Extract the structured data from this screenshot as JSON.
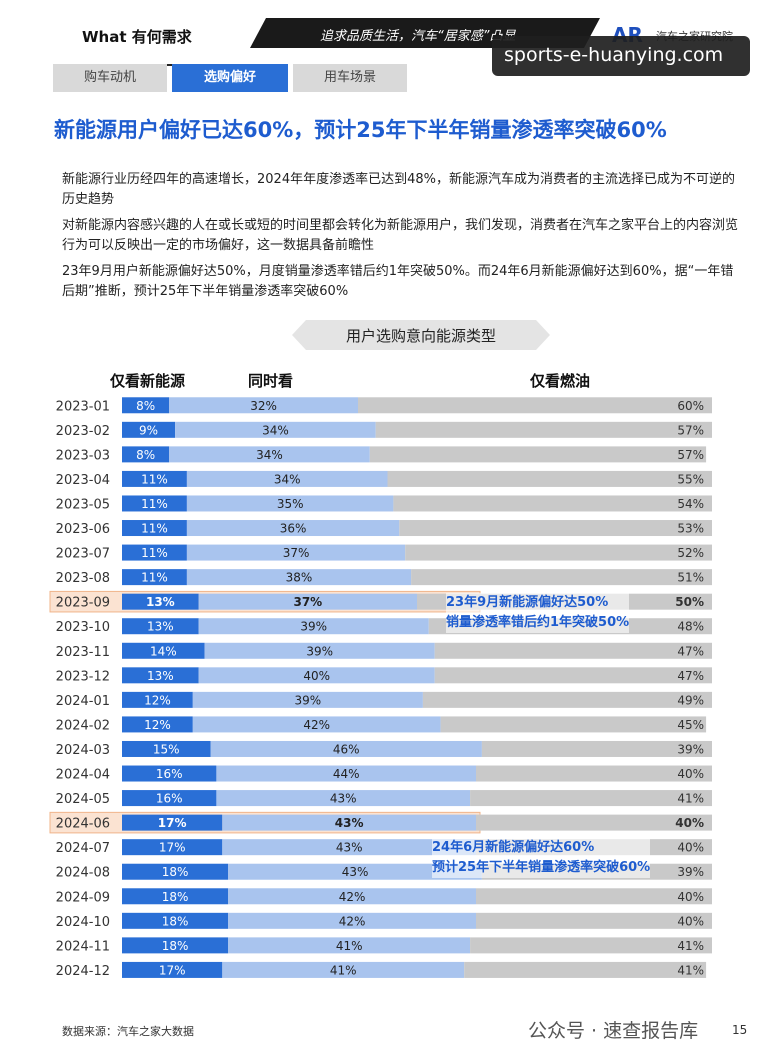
{
  "header": {
    "section": "What 有何需求",
    "banner": "追求品质生活，汽车“居家感”凸显",
    "logo_mark": "AR",
    "logo_text": "汽车之家研究院",
    "watermark": "sports-e-huanying.com"
  },
  "tabs": [
    {
      "label": "购车动机",
      "active": false
    },
    {
      "label": "选购偏好",
      "active": true
    },
    {
      "label": "用车场景",
      "active": false
    }
  ],
  "headline": "新能源用户偏好已达60%，预计25年下半年销量渗透率突破60%",
  "paragraphs": [
    "新能源行业历经四年的高速增长，2024年年度渗透率已达到48%，新能源汽车成为消费者的主流选择已成为不可逆的历史趋势",
    "对新能源内容感兴趣的人在或长或短的时间里都会转化为新能源用户，我们发现，消费者在汽车之家平台上的内容浏览行为可以反映出一定的市场偏好，这一数据具备前瞻性",
    "23年9月用户新能源偏好达50%，月度销量渗透率错后约1年突破50%。而24年6月新能源偏好达到60%，据“一年错后期”推断，预计25年下半年销量渗透率突破60%"
  ],
  "chart_data": {
    "type": "bar",
    "stacked": true,
    "orientation": "horizontal",
    "title": "用户选购意向能源类型",
    "categories": [
      "2023-01",
      "2023-02",
      "2023-03",
      "2023-04",
      "2023-05",
      "2023-06",
      "2023-07",
      "2023-08",
      "2023-09",
      "2023-10",
      "2023-11",
      "2023-12",
      "2024-01",
      "2024-02",
      "2024-03",
      "2024-04",
      "2024-05",
      "2024-06",
      "2024-07",
      "2024-08",
      "2024-09",
      "2024-10",
      "2024-11",
      "2024-12"
    ],
    "series": [
      {
        "name": "仅看新能源",
        "color": "#2a6fd6",
        "values": [
          8,
          9,
          8,
          11,
          11,
          11,
          11,
          11,
          13,
          13,
          14,
          13,
          12,
          12,
          15,
          16,
          16,
          17,
          17,
          18,
          18,
          18,
          18,
          17
        ]
      },
      {
        "name": "同时看",
        "color": "#a9c4ee",
        "values": [
          32,
          34,
          34,
          34,
          35,
          36,
          37,
          38,
          37,
          39,
          39,
          40,
          39,
          42,
          46,
          44,
          43,
          43,
          43,
          43,
          42,
          42,
          41,
          41
        ]
      },
      {
        "name": "仅看燃油",
        "color": "#c9c9c9",
        "values": [
          60,
          57,
          57,
          55,
          54,
          53,
          52,
          51,
          50,
          48,
          47,
          47,
          49,
          45,
          39,
          40,
          41,
          40,
          40,
          39,
          40,
          40,
          41,
          41
        ]
      }
    ],
    "value_suffix": "%",
    "highlighted_categories": [
      "2023-09",
      "2024-06"
    ],
    "annotations": [
      {
        "lines": [
          "23年9月新能源偏好达50%",
          "销量渗透率错后约1年突破50%"
        ],
        "category": "2023-09"
      },
      {
        "lines": [
          "24年6月新能源偏好达60%",
          "预计25年下半年销量渗透率突破60%"
        ],
        "category": "2024-06"
      }
    ]
  },
  "footer": {
    "source": "数据来源：汽车之家大数据",
    "watermark": "公众号 · 速查报告库",
    "page": "15"
  }
}
